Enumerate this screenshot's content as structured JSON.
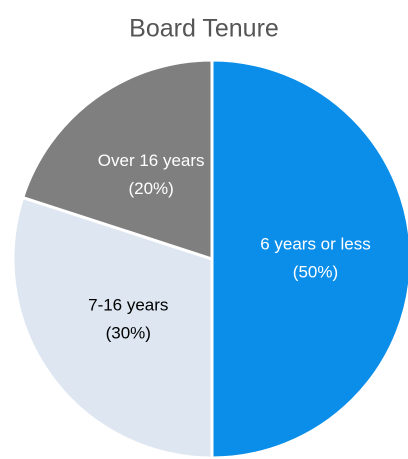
{
  "chart_data": {
    "type": "pie",
    "title": "Board Tenure",
    "categories": [
      "6 years or less",
      "7-16 years",
      "Over 16 years"
    ],
    "values": [
      50,
      30,
      20
    ],
    "value_labels": [
      "(50%)",
      "(30%)",
      "(20%)"
    ],
    "colors": [
      "#0a8ee9",
      "#dde6f1",
      "#7f7f7f"
    ]
  }
}
